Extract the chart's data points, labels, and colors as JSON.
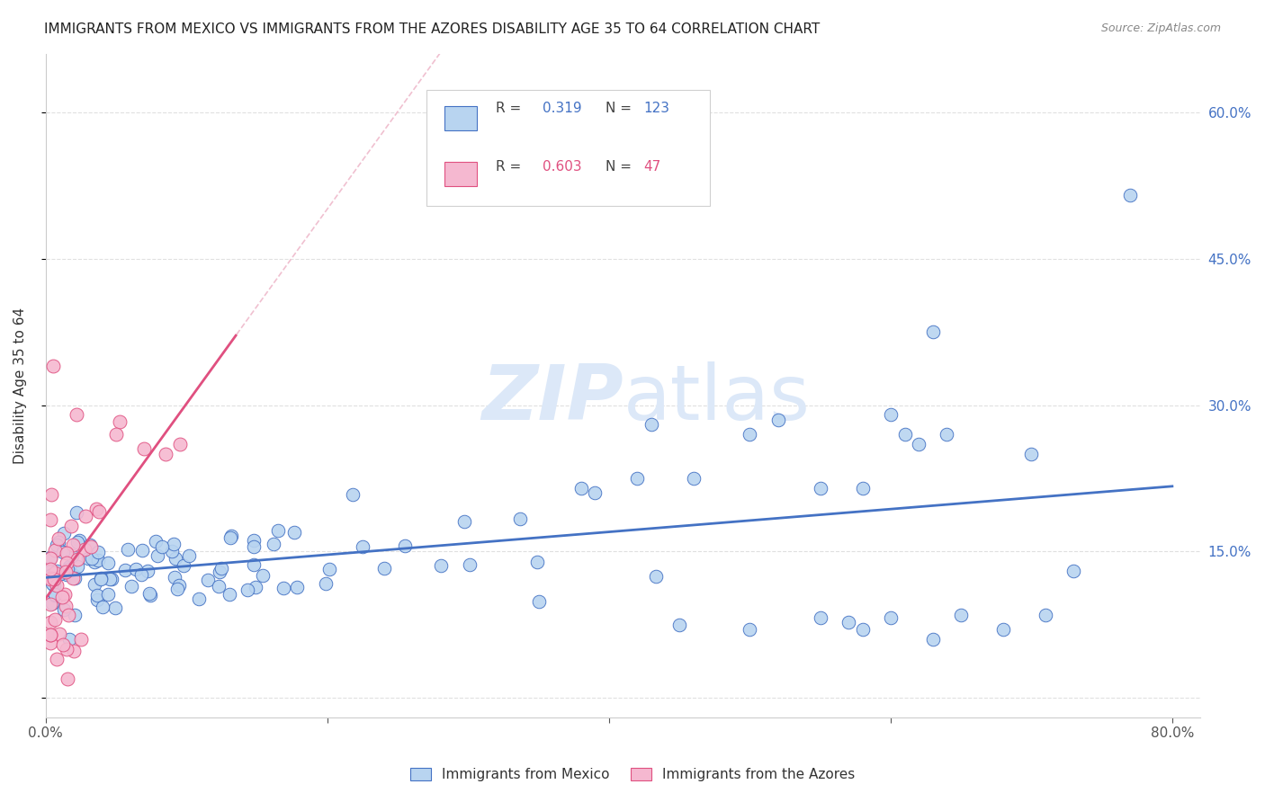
{
  "title": "IMMIGRANTS FROM MEXICO VS IMMIGRANTS FROM THE AZORES DISABILITY AGE 35 TO 64 CORRELATION CHART",
  "source": "Source: ZipAtlas.com",
  "ylabel": "Disability Age 35 to 64",
  "xlim": [
    0.0,
    0.82
  ],
  "ylim": [
    -0.02,
    0.66
  ],
  "legend_mexico": "Immigrants from Mexico",
  "legend_azores": "Immigrants from the Azores",
  "R_mexico": "0.319",
  "N_mexico": "123",
  "R_azores": "0.603",
  "N_azores": "47",
  "color_mexico": "#b8d4f0",
  "color_azores": "#f5b8d0",
  "line_color_mexico": "#4472c4",
  "line_color_azores": "#e05080",
  "diagonal_color": "#f0c0d0",
  "watermark_color": "#dce8f8",
  "background_color": "#ffffff",
  "grid_color": "#e0e0e0",
  "seed_mexico": 42,
  "seed_azores": 17
}
